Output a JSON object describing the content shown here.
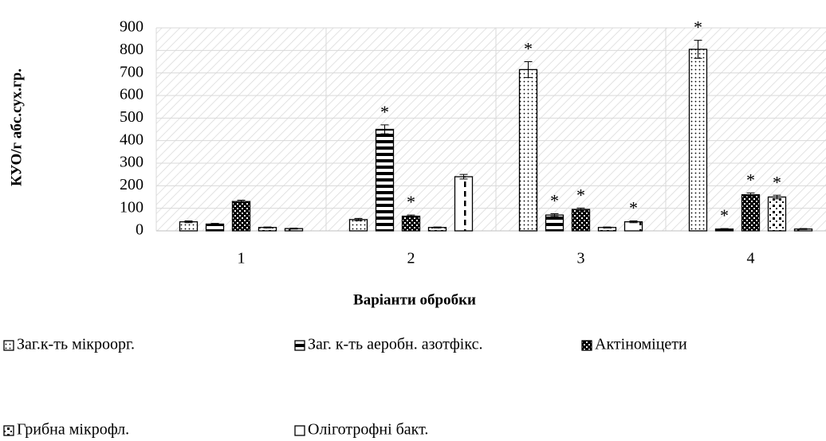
{
  "chart_data": {
    "type": "bar",
    "y_label": "КУО/г абс.сух.гр.",
    "x_label": "Варіанти обробки",
    "categories": [
      "1",
      "2",
      "3",
      "4"
    ],
    "ylim": [
      0,
      900
    ],
    "yticks": [
      0,
      100,
      200,
      300,
      400,
      500,
      600,
      700,
      800,
      900
    ],
    "grid": true,
    "legend": "bottom",
    "series": [
      {
        "name": "Заг.к-ть мікроорг.",
        "pattern": "dots",
        "values": [
          40,
          50,
          715,
          805
        ],
        "errors": [
          4,
          5,
          35,
          40
        ]
      },
      {
        "name": "Заг. к-ть аеробн. азотфікс.",
        "pattern": "hstripes",
        "values": [
          30,
          450,
          70,
          8
        ],
        "errors": [
          3,
          20,
          6,
          2
        ]
      },
      {
        "name": "Актіноміцети",
        "pattern": "checker",
        "values": [
          130,
          65,
          95,
          160
        ],
        "errors": [
          6,
          5,
          6,
          8
        ]
      },
      {
        "name": "Грибна мікрофл.",
        "pattern": "sparse",
        "values": [
          15,
          15,
          15,
          150
        ],
        "errors": [
          2,
          2,
          2,
          8
        ]
      },
      {
        "name": "Оліготрофні бакт.",
        "pattern": "vdash",
        "values": [
          10,
          240,
          40,
          8
        ],
        "errors": [
          2,
          10,
          4,
          2
        ]
      }
    ],
    "annotations": [
      {
        "text": "*",
        "series": 1,
        "category": 1
      },
      {
        "text": "*",
        "series": 2,
        "category": 1
      },
      {
        "text": "*",
        "series": 0,
        "category": 2
      },
      {
        "text": "*",
        "series": 1,
        "category": 2
      },
      {
        "text": "*",
        "series": 2,
        "category": 2
      },
      {
        "text": "*",
        "series": 4,
        "category": 2
      },
      {
        "text": "*",
        "series": 0,
        "category": 3
      },
      {
        "text": "*",
        "series": 1,
        "category": 3
      },
      {
        "text": "*",
        "series": 2,
        "category": 3
      },
      {
        "text": "*",
        "series": 3,
        "category": 3
      }
    ]
  }
}
